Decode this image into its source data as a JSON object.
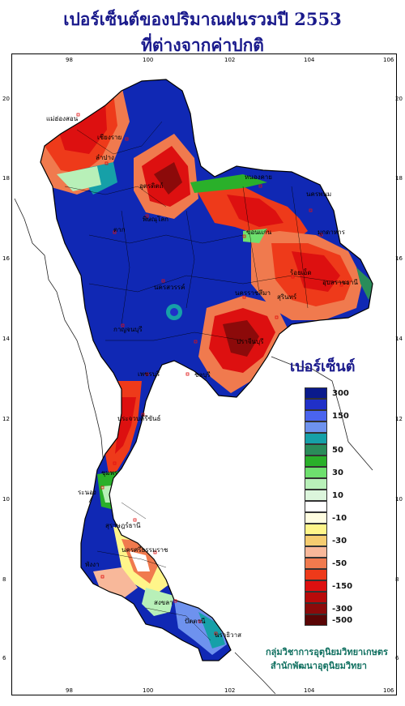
{
  "title": {
    "line1": "เปอร์เซ็นต์ของปริมาณฝนรวมปี  2553",
    "line2": "ที่ต่างจากค่าปกติ"
  },
  "axes": {
    "longitude_labels": [
      "98",
      "100",
      "102",
      "104",
      "106"
    ],
    "latitude_labels": [
      "20",
      "18",
      "16",
      "14",
      "12",
      "10",
      "8",
      "6"
    ]
  },
  "legend": {
    "title": "เปอร์เซ็นต์",
    "items": [
      {
        "label": "300",
        "color": "#0a1a8c"
      },
      {
        "label": "",
        "color": "#2030c8"
      },
      {
        "label": "150",
        "color": "#4a64ee"
      },
      {
        "label": "",
        "color": "#6e92ee"
      },
      {
        "label": "",
        "color": "#16a0a8"
      },
      {
        "label": "50",
        "color": "#2a8c5a"
      },
      {
        "label": "",
        "color": "#2ab02a"
      },
      {
        "label": "30",
        "color": "#6ee06e"
      },
      {
        "label": "",
        "color": "#b8f0b8"
      },
      {
        "label": "10",
        "color": "#dcf5dc"
      },
      {
        "label": "",
        "color": "#ffffff"
      },
      {
        "label": "-10",
        "color": "#fffde0"
      },
      {
        "label": "",
        "color": "#fff58a"
      },
      {
        "label": "-30",
        "color": "#f5cc70"
      },
      {
        "label": "",
        "color": "#f8b89a"
      },
      {
        "label": "-50",
        "color": "#f07a4e"
      },
      {
        "label": "",
        "color": "#ee3a1a"
      },
      {
        "label": "-150",
        "color": "#dd1010"
      },
      {
        "label": "",
        "color": "#b80a0a"
      },
      {
        "label": "-300",
        "color": "#8c0a0a"
      },
      {
        "label": "-500",
        "color": "#5a0505"
      }
    ]
  },
  "provinces": [
    "เชียงราย",
    "แม่ฮ่องสอน",
    "ลำปาง",
    "อุตรดิตถ์",
    "หนองคาย",
    "นครพนม",
    "ตาก",
    "พิษณุโลก",
    "ขอนแก่น",
    "มุกดาหาร",
    "ร้อยเอ็ด",
    "อุบลราชธานี",
    "นครสวรรค์",
    "นครราชสีมา",
    "สุรินทร์",
    "กาญจนบุรี",
    "ปราจีนบุรี",
    "เพชรบุรี",
    "ชลบุรี",
    "ประจวบคีรีขันธ์",
    "ชุมพร",
    "ระนอง",
    "สุราษฎร์ธานี",
    "นครศรีธรรมราช",
    "พังงา",
    "สงขลา",
    "ปัตตานี",
    "นราธิวาส"
  ],
  "credit": {
    "line1": "กลุ่มวิชาการอุตุนิยมวิทยาเกษตร",
    "line2": "สำนักพัฒนาอุตุนิยมวิทยา"
  }
}
